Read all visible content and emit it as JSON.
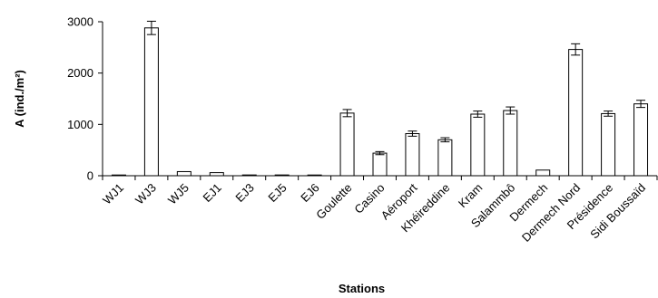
{
  "chart_data": {
    "type": "bar",
    "title": "",
    "xlabel": "Stations",
    "ylabel": "A (ind./m²)",
    "ylim": [
      0,
      3000
    ],
    "yticks": [
      0,
      1000,
      2000,
      3000
    ],
    "grid": false,
    "legend": "none",
    "bar_color": "#ffffff",
    "edge_color": "#000000",
    "categories": [
      "WJ1",
      "WJ3",
      "WJ5",
      "EJ1",
      "EJ3",
      "EJ5",
      "EJ6",
      "Goulette",
      "Casino",
      "Aéroport",
      "Khéireddine",
      "Kram",
      "Salammbô",
      "Dermech",
      "Dermech Nord",
      "Présidence",
      "Sidi Boussaïd"
    ],
    "values": [
      10,
      2880,
      80,
      60,
      15,
      15,
      5,
      1220,
      440,
      820,
      700,
      1200,
      1270,
      110,
      2460,
      1210,
      1400
    ],
    "errors": [
      0,
      130,
      0,
      0,
      0,
      0,
      0,
      70,
      30,
      50,
      40,
      60,
      70,
      0,
      110,
      50,
      70
    ]
  }
}
